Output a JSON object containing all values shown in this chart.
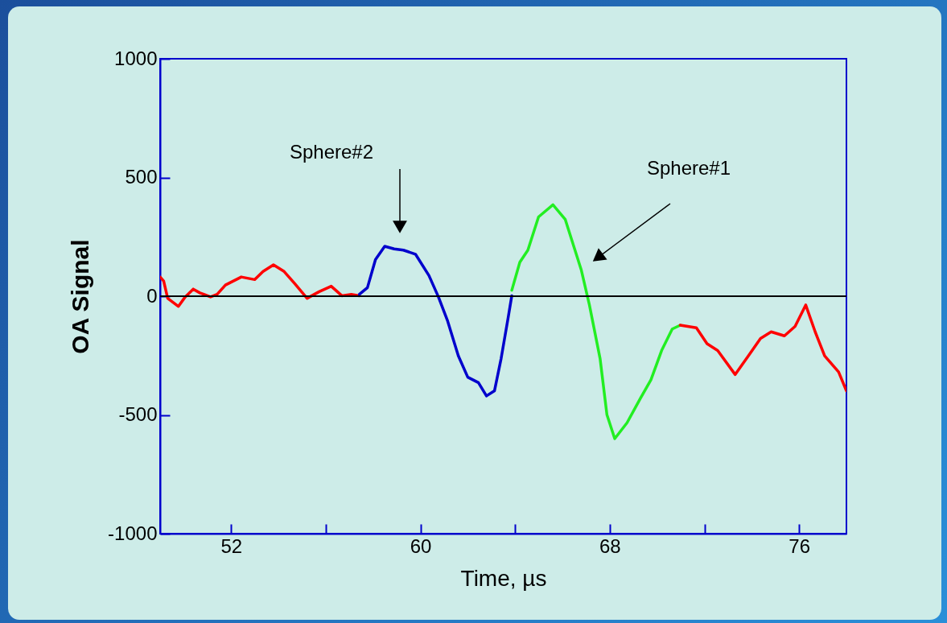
{
  "chart_data": {
    "type": "line",
    "xlabel": "Time, µs",
    "ylabel": "OA Signal",
    "xlim": [
      49,
      78
    ],
    "ylim": [
      -1000,
      1000
    ],
    "xticks": [
      52,
      {
        "value": 56,
        "label": null
      },
      60,
      {
        "value": 64,
        "label": null
      },
      68,
      {
        "value": 72,
        "label": null
      },
      76
    ],
    "yticks": [
      -1000,
      -500,
      0,
      500,
      1000
    ],
    "grid": false,
    "series": [
      {
        "color": "#ff0000",
        "x": [
          49.0,
          49.15,
          49.32,
          49.77,
          50.06,
          50.4,
          50.68,
          51.13,
          51.41,
          51.76,
          52.43,
          53.0,
          53.35,
          53.79,
          54.24,
          54.69,
          55.21,
          55.72,
          56.23,
          56.68,
          57.08,
          57.42
        ],
        "values": [
          81,
          64,
          -9,
          -43,
          -3,
          30,
          14,
          -3,
          8,
          47,
          81,
          70,
          104,
          132,
          104,
          53,
          -9,
          19,
          42,
          2,
          8,
          2
        ]
      },
      {
        "color": "#0000cc",
        "x": [
          57.42,
          57.76,
          58.1,
          58.49,
          58.89,
          59.28,
          59.79,
          60.36,
          60.76,
          61.15,
          61.6,
          62.0,
          62.45,
          62.79,
          63.13,
          63.41,
          63.7,
          63.86
        ],
        "values": [
          8,
          36,
          154,
          210,
          199,
          194,
          177,
          87,
          -3,
          -105,
          -251,
          -341,
          -364,
          -420,
          -398,
          -262,
          -94,
          2
        ]
      },
      {
        "color": "#22ee22",
        "x": [
          63.86,
          64.2,
          64.54,
          64.99,
          65.6,
          66.12,
          66.8,
          67.14,
          67.59,
          67.88,
          68.21,
          68.73,
          69.29,
          69.74,
          70.19,
          70.64,
          70.98
        ],
        "values": [
          25,
          143,
          194,
          334,
          385,
          323,
          109,
          -37,
          -262,
          -499,
          -600,
          -533,
          -431,
          -352,
          -229,
          -138,
          -122
        ]
      },
      {
        "color": "#ff0000",
        "x": [
          70.98,
          71.66,
          72.11,
          72.56,
          73.3,
          73.86,
          74.37,
          74.82,
          75.38,
          75.83,
          76.28,
          76.68,
          77.08,
          77.67,
          78.0
        ],
        "values": [
          -122,
          -133,
          -200,
          -229,
          -330,
          -251,
          -178,
          -150,
          -167,
          -127,
          -37,
          -150,
          -251,
          -319,
          -399
        ]
      }
    ],
    "ref_lines": [
      {
        "axis": "y",
        "value": 0,
        "color": "#000000"
      }
    ],
    "annotations": [
      "Sphere#2",
      "Sphere#1"
    ]
  }
}
